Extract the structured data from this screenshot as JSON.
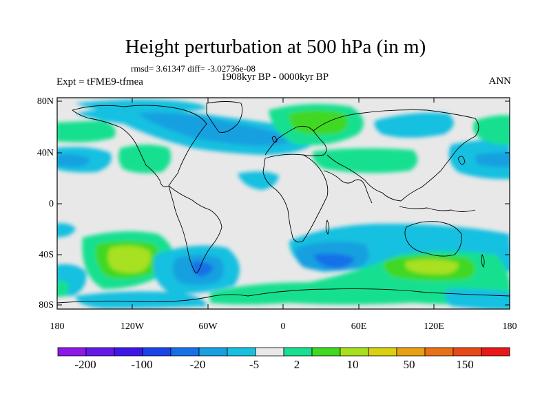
{
  "title": "Height perturbation at 500 hPa (in m)",
  "stats": "rmsd= 3.61347 diff= -3.02736e-08",
  "experiment": "Expt = tFME9-tfmea",
  "period": "1908kyr BP - 0000kyr BP",
  "season": "ANN",
  "lat_labels": [
    "80N",
    "40N",
    "0",
    "40S",
    "80S"
  ],
  "lon_labels": [
    "180",
    "120W",
    "60W",
    "0",
    "60E",
    "120E",
    "180"
  ],
  "colorbar": {
    "labels": [
      "-200",
      "-100",
      "-20",
      "-5",
      "2",
      "10",
      "50",
      "150"
    ],
    "colors": [
      "#8d18e8",
      "#6618e8",
      "#3c18e8",
      "#1844e8",
      "#1870e8",
      "#18a0e0",
      "#18c0e0",
      "#e8e8e8",
      "#18e090",
      "#40d820",
      "#a8e020",
      "#d8d010",
      "#e8a010",
      "#e87018",
      "#e84818",
      "#e81818"
    ]
  },
  "map_colors": {
    "background": "#e8e8e8",
    "light_blue": "#18c0e0",
    "mid_blue": "#18a0e0",
    "blue": "#1870e8",
    "green": "#18e090",
    "lime": "#40d820",
    "yellow_green": "#a8e020"
  }
}
